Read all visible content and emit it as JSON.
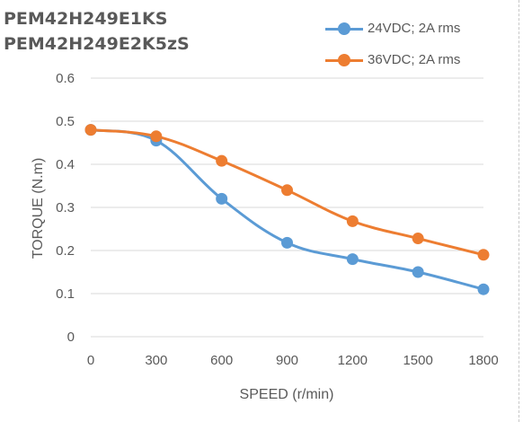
{
  "colors": {
    "series1": "#5b9bd5",
    "series2": "#ed7d31",
    "grid": "#d9d9d9",
    "text": "#595959"
  },
  "chart_data": {
    "type": "line",
    "title_lines": [
      "PEM42H249E1KS",
      "PEM42H249E2K5zS"
    ],
    "xlabel": "SPEED (r/min)",
    "ylabel": "TORQUE (N.m)",
    "categories": [
      "0",
      "300",
      "600",
      "900",
      "1200",
      "1500",
      "1800"
    ],
    "y_ticks": [
      "0",
      "0.1",
      "0.2",
      "0.3",
      "0.4",
      "0.5",
      "0.6"
    ],
    "ylim": [
      0,
      0.6
    ],
    "grid": "horizontal",
    "legend_position": "top-right",
    "series": [
      {
        "name": "24VDC; 2A rms",
        "values": [
          0.48,
          0.455,
          0.32,
          0.218,
          0.18,
          0.15,
          0.11
        ]
      },
      {
        "name": "36VDC; 2A rms",
        "values": [
          0.48,
          0.465,
          0.408,
          0.34,
          0.268,
          0.228,
          0.19
        ]
      }
    ]
  }
}
